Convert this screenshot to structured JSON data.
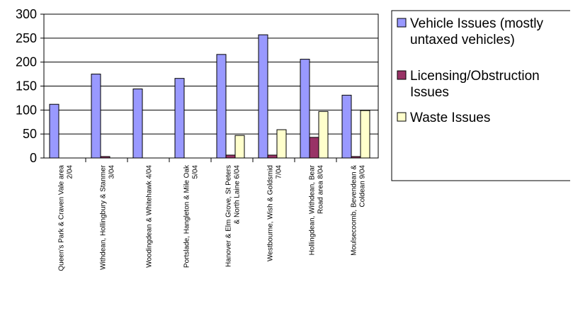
{
  "chart_data": {
    "type": "bar",
    "ylim": [
      0,
      300
    ],
    "yticks": [
      0,
      50,
      100,
      150,
      200,
      250,
      300
    ],
    "grid": true,
    "legend_position": "right",
    "categories": [
      [
        "Queen's Park & Craven Vale area",
        "2/04"
      ],
      [
        "Withdean, Hollingbury & Stanmer",
        "3/04"
      ],
      [
        "Woodingdean & Whitehawk 4/04"
      ],
      [
        "Portslade, Hangleton & Mile Oak",
        "5/04"
      ],
      [
        "Hanover & Elm Grove, St Peters",
        "& North Laine 6/04"
      ],
      [
        "Westbourne, Wish & Goldsmid",
        "7/04"
      ],
      [
        "Hollingdean, Withdean, Bear",
        "Road area 8/04"
      ],
      [
        "Moulsecoomb, Bevendean &",
        "Coldean 9/04"
      ]
    ],
    "series": [
      {
        "name_lines": [
          "Vehicle Issues (mostly",
          "untaxed vehicles)"
        ],
        "color": "#9999ff",
        "values": [
          112,
          175,
          144,
          166,
          216,
          257,
          206,
          131
        ]
      },
      {
        "name_lines": [
          "Licensing/Obstruction",
          "Issues"
        ],
        "color": "#993366",
        "values": [
          0,
          3,
          0,
          0,
          6,
          6,
          43,
          3
        ]
      },
      {
        "name_lines": [
          "Waste Issues"
        ],
        "color": "#ffffcc",
        "values": [
          0,
          0,
          0,
          0,
          47,
          59,
          97,
          99
        ]
      }
    ]
  }
}
